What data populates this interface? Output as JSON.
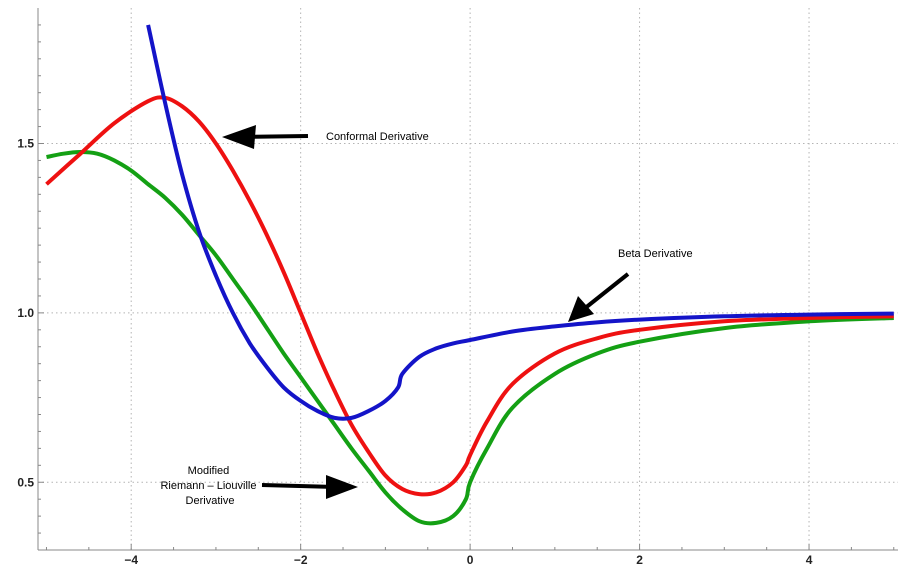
{
  "chart_data": {
    "type": "line",
    "title": "",
    "xlabel": "",
    "ylabel": "",
    "xlim": [
      -5.1,
      5.05
    ],
    "ylim": [
      0.3,
      1.9
    ],
    "grid": true,
    "x_ticks": [
      -4,
      -2,
      0,
      2,
      4
    ],
    "x_tick_labels": [
      "−4",
      "−2",
      "0",
      "2",
      "4"
    ],
    "y_ticks": [
      0.5,
      1.0,
      1.5
    ],
    "y_tick_labels": [
      "0.5",
      "1.0",
      "1.5"
    ],
    "colors": {
      "beta": "#1414c8",
      "conformal": "#ee1111",
      "riemann": "#14a014"
    },
    "series": [
      {
        "name": "Beta Derivative",
        "color": "#1414c8",
        "x": [
          -3.8,
          -3.6,
          -3.4,
          -3.2,
          -3.0,
          -2.8,
          -2.6,
          -2.4,
          -2.2,
          -2.0,
          -1.8,
          -1.6,
          -1.4,
          -1.2,
          -1.0,
          -0.85,
          -0.8,
          -0.6,
          -0.4,
          -0.2,
          0.0,
          0.5,
          1.0,
          1.5,
          2.0,
          3.0,
          4.0,
          5.0
        ],
        "y": [
          1.85,
          1.62,
          1.41,
          1.24,
          1.11,
          1.0,
          0.91,
          0.84,
          0.78,
          0.74,
          0.71,
          0.69,
          0.69,
          0.71,
          0.74,
          0.78,
          0.82,
          0.87,
          0.895,
          0.91,
          0.92,
          0.945,
          0.96,
          0.972,
          0.98,
          0.99,
          0.995,
          0.998
        ]
      },
      {
        "name": "Conformal Derivative",
        "color": "#ee1111",
        "x": [
          -5.0,
          -4.6,
          -4.2,
          -3.8,
          -3.6,
          -3.4,
          -3.2,
          -3.0,
          -2.8,
          -2.6,
          -2.4,
          -2.2,
          -2.0,
          -1.8,
          -1.6,
          -1.4,
          -1.2,
          -1.0,
          -0.8,
          -0.6,
          -0.4,
          -0.2,
          -0.05,
          0.0,
          0.2,
          0.5,
          1.0,
          1.5,
          2.0,
          3.0,
          4.0,
          5.0
        ],
        "y": [
          1.38,
          1.47,
          1.56,
          1.625,
          1.635,
          1.61,
          1.565,
          1.5,
          1.42,
          1.33,
          1.23,
          1.12,
          1.0,
          0.88,
          0.77,
          0.67,
          0.59,
          0.52,
          0.48,
          0.465,
          0.47,
          0.5,
          0.55,
          0.58,
          0.68,
          0.79,
          0.88,
          0.925,
          0.95,
          0.975,
          0.985,
          0.99
        ]
      },
      {
        "name": "Modified Riemann – Liouville Derivative",
        "color": "#14a014",
        "x": [
          -5.0,
          -4.8,
          -4.6,
          -4.4,
          -4.2,
          -4.0,
          -3.8,
          -3.6,
          -3.4,
          -3.2,
          -3.0,
          -2.8,
          -2.6,
          -2.4,
          -2.2,
          -2.0,
          -1.8,
          -1.6,
          -1.4,
          -1.2,
          -1.0,
          -0.8,
          -0.6,
          -0.4,
          -0.2,
          -0.05,
          0.0,
          0.2,
          0.5,
          1.0,
          1.5,
          2.0,
          3.0,
          4.0,
          5.0
        ],
        "y": [
          1.46,
          1.47,
          1.475,
          1.47,
          1.45,
          1.42,
          1.38,
          1.34,
          1.29,
          1.23,
          1.17,
          1.1,
          1.03,
          0.955,
          0.88,
          0.81,
          0.74,
          0.67,
          0.6,
          0.535,
          0.47,
          0.42,
          0.385,
          0.38,
          0.4,
          0.45,
          0.5,
          0.6,
          0.72,
          0.82,
          0.88,
          0.915,
          0.955,
          0.975,
          0.985
        ]
      }
    ],
    "annotations": [
      {
        "id": "conformal",
        "lines": [
          "Conformal Derivative"
        ]
      },
      {
        "id": "beta",
        "lines": [
          "Beta Derivative"
        ]
      },
      {
        "id": "riemann",
        "lines": [
          "Modified",
          "Riemann – Liouville",
          "Derivative"
        ]
      }
    ]
  }
}
